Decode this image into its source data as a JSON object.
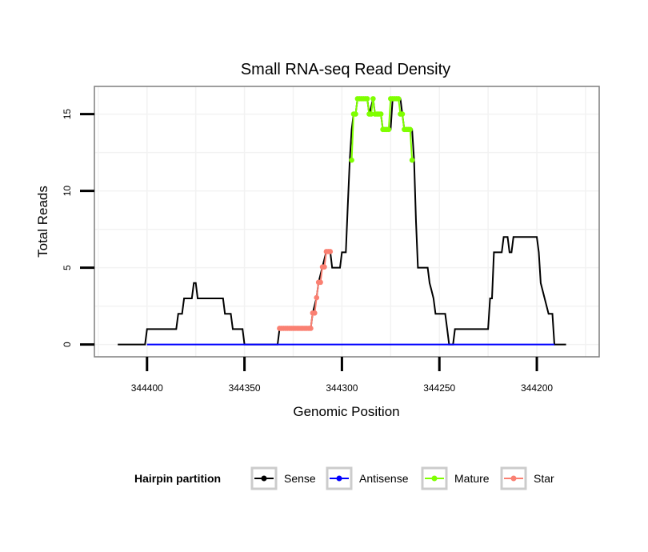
{
  "chart_data": {
    "type": "line",
    "title": "Small RNA-seq Read Density",
    "xlabel": "Genomic Position",
    "ylabel": "Total Reads",
    "x_reversed": true,
    "xlim": [
      344427,
      344168
    ],
    "ylim": [
      -0.8,
      16.8
    ],
    "x_ticks": [
      344400,
      344350,
      344300,
      344250,
      344200
    ],
    "x_tick_labels": [
      "344400",
      "344350",
      "344300",
      "344250",
      "344200"
    ],
    "y_ticks": [
      0,
      5,
      10,
      15
    ],
    "y_tick_labels": [
      "0",
      "5",
      "10",
      "15"
    ],
    "grid": true,
    "legend": {
      "title": "Hairpin partition",
      "position": "bottom",
      "entries": [
        {
          "label": "Sense",
          "color": "#000000"
        },
        {
          "label": "Antisense",
          "color": "#0000ff"
        },
        {
          "label": "Mature",
          "color": "#7fff00"
        },
        {
          "label": "Star",
          "color": "#fa8072"
        }
      ]
    },
    "series": [
      {
        "name": "Sense",
        "color": "#000000",
        "points": [
          [
            344415,
            0
          ],
          [
            344401,
            0
          ],
          [
            344400,
            1
          ],
          [
            344385,
            1
          ],
          [
            344384,
            2
          ],
          [
            344382,
            2
          ],
          [
            344381,
            3
          ],
          [
            344377,
            3
          ],
          [
            344376,
            4
          ],
          [
            344375,
            4
          ],
          [
            344374,
            3
          ],
          [
            344361,
            3
          ],
          [
            344360,
            2
          ],
          [
            344357,
            2
          ],
          [
            344356,
            1
          ],
          [
            344351,
            1
          ],
          [
            344350,
            0
          ],
          [
            344333,
            0
          ],
          [
            344332,
            1
          ],
          [
            344322,
            1
          ],
          [
            344321,
            1.05
          ],
          [
            344316,
            1.05
          ],
          [
            344315,
            2.05
          ],
          [
            344313,
            3.05
          ],
          [
            344312,
            4.05
          ],
          [
            344310,
            5.05
          ],
          [
            344308,
            6.05
          ],
          [
            344306,
            6.05
          ],
          [
            344305,
            5
          ],
          [
            344301,
            5
          ],
          [
            344300,
            6
          ],
          [
            344298,
            6
          ],
          [
            344297,
            9
          ],
          [
            344296,
            12
          ],
          [
            344295,
            14
          ],
          [
            344294,
            15
          ],
          [
            344293,
            15
          ],
          [
            344292,
            16
          ],
          [
            344287,
            16
          ],
          [
            344286,
            15
          ],
          [
            344285,
            15.5
          ],
          [
            344284,
            16
          ],
          [
            344283,
            15
          ],
          [
            344280,
            15
          ],
          [
            344279,
            14
          ],
          [
            344275,
            14
          ],
          [
            344274,
            16
          ],
          [
            344270,
            16
          ],
          [
            344269,
            15
          ],
          [
            344268,
            14
          ],
          [
            344264,
            14
          ],
          [
            344263,
            12
          ],
          [
            344262,
            8
          ],
          [
            344261,
            5
          ],
          [
            344256,
            5
          ],
          [
            344255,
            4
          ],
          [
            344254,
            3.5
          ],
          [
            344253,
            3
          ],
          [
            344252,
            2
          ],
          [
            344247,
            2
          ],
          [
            344246,
            1
          ],
          [
            344245,
            0
          ],
          [
            344243,
            0
          ],
          [
            344242,
            1
          ],
          [
            344225,
            1
          ],
          [
            344224,
            3
          ],
          [
            344223,
            3
          ],
          [
            344222,
            6
          ],
          [
            344218,
            6
          ],
          [
            344217,
            7
          ],
          [
            344215,
            7
          ],
          [
            344214,
            6
          ],
          [
            344213,
            6
          ],
          [
            344212,
            7
          ],
          [
            344200,
            7
          ],
          [
            344199,
            6
          ],
          [
            344198,
            4
          ],
          [
            344196,
            3
          ],
          [
            344194,
            2
          ],
          [
            344192,
            2
          ],
          [
            344191,
            0
          ],
          [
            344185,
            0
          ]
        ]
      },
      {
        "name": "Antisense",
        "color": "#0000ff",
        "points": [
          [
            344400,
            0
          ],
          [
            344191,
            0
          ]
        ]
      },
      {
        "name": "Mature",
        "color": "#7fff00",
        "points": [
          [
            344295,
            12
          ],
          [
            344294,
            15
          ],
          [
            344293,
            15
          ],
          [
            344292,
            16
          ],
          [
            344291,
            16
          ],
          [
            344290,
            16
          ],
          [
            344289,
            16
          ],
          [
            344288,
            16
          ],
          [
            344287,
            16
          ],
          [
            344286,
            15
          ],
          [
            344285,
            15
          ],
          [
            344284,
            16
          ],
          [
            344283,
            15
          ],
          [
            344282,
            15
          ],
          [
            344281,
            15
          ],
          [
            344280,
            15
          ],
          [
            344279,
            14
          ],
          [
            344278,
            14
          ],
          [
            344277,
            14
          ],
          [
            344276,
            14
          ],
          [
            344275,
            16
          ],
          [
            344274,
            16
          ],
          [
            344273,
            16
          ],
          [
            344272,
            16
          ],
          [
            344271,
            16
          ],
          [
            344270,
            15
          ],
          [
            344269,
            15
          ],
          [
            344268,
            14
          ],
          [
            344267,
            14
          ],
          [
            344266,
            14
          ],
          [
            344265,
            14
          ],
          [
            344264,
            12
          ]
        ]
      },
      {
        "name": "Star",
        "color": "#fa8072",
        "points": [
          [
            344332,
            1.05
          ],
          [
            344331,
            1.05
          ],
          [
            344330,
            1.05
          ],
          [
            344329,
            1.05
          ],
          [
            344328,
            1.05
          ],
          [
            344327,
            1.05
          ],
          [
            344326,
            1.05
          ],
          [
            344325,
            1.05
          ],
          [
            344324,
            1.05
          ],
          [
            344323,
            1.05
          ],
          [
            344322,
            1.05
          ],
          [
            344321,
            1.05
          ],
          [
            344320,
            1.05
          ],
          [
            344319,
            1.05
          ],
          [
            344318,
            1.05
          ],
          [
            344317,
            1.05
          ],
          [
            344316,
            1.05
          ],
          [
            344315,
            2.05
          ],
          [
            344314,
            2.05
          ],
          [
            344313,
            3.05
          ],
          [
            344312,
            4.05
          ],
          [
            344311,
            4.05
          ],
          [
            344310,
            5.05
          ],
          [
            344309,
            5.05
          ],
          [
            344308,
            6.05
          ],
          [
            344307,
            6.05
          ],
          [
            344306,
            6.05
          ]
        ]
      }
    ]
  }
}
